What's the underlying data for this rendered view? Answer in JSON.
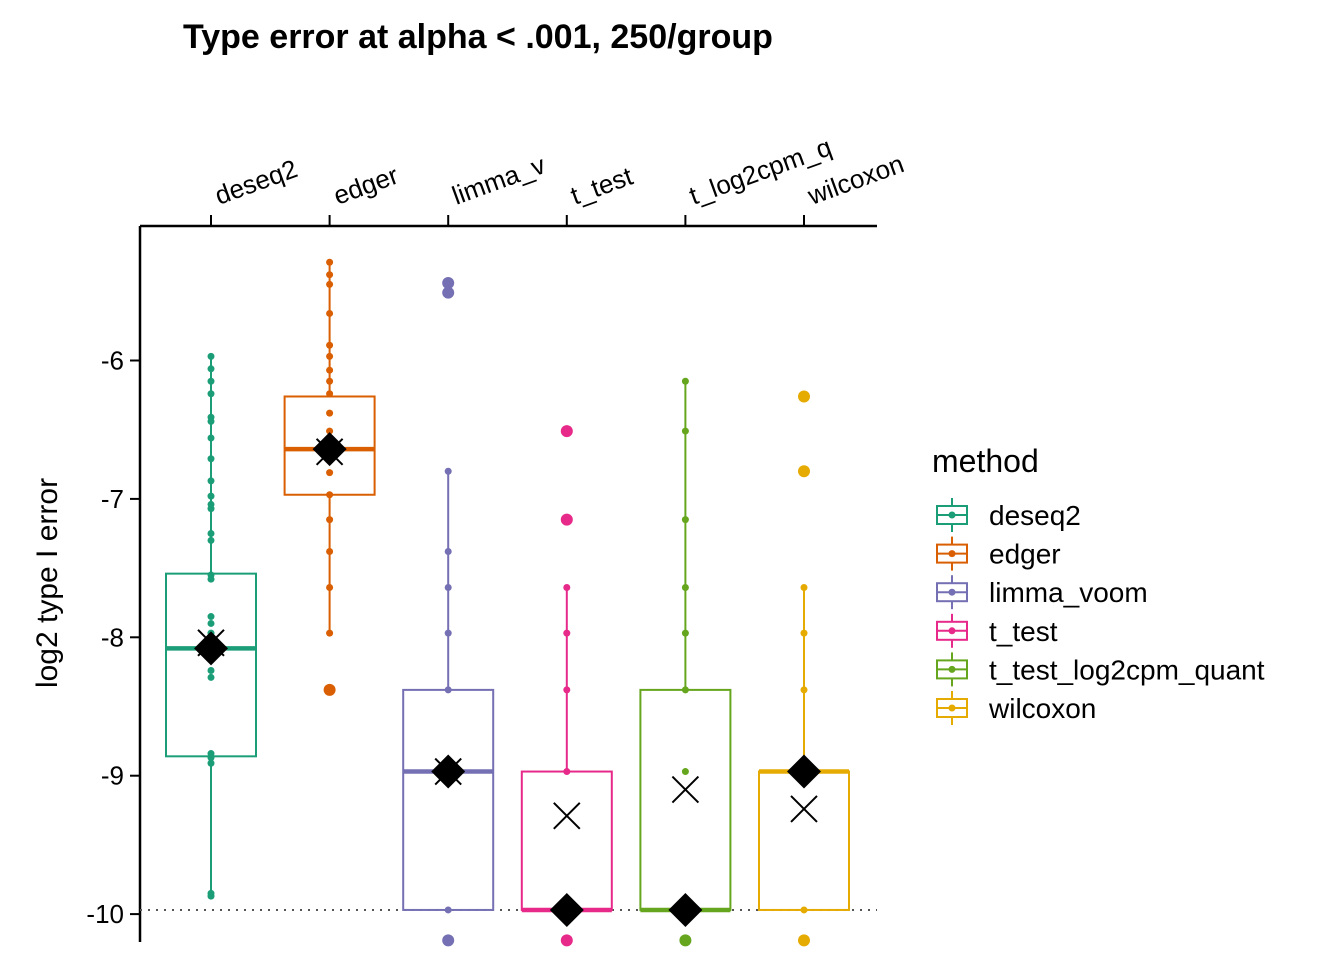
{
  "chart_data": {
    "type": "box",
    "title": "Type error at alpha < .001, 250/group",
    "xlabel": "",
    "ylabel": "log2 type I error",
    "x_axis_position": "top",
    "x_tick_rotation_deg": -20,
    "categories": [
      "deseq2",
      "edger",
      "limma_v",
      "t_test",
      "t_log2cpm_q",
      "wilcoxon"
    ],
    "y_ticks": [
      -6,
      -7,
      -8,
      -9,
      -10
    ],
    "ylim": [
      -10.2,
      -5.25
    ],
    "reference_line": {
      "y": -9.97,
      "style": "dotted",
      "color": "#555555"
    },
    "legend": {
      "title": "method",
      "position": "right",
      "items": [
        "deseq2",
        "edger",
        "limma_voom",
        "t_test",
        "t_test_log2cpm_quant",
        "wilcoxon"
      ]
    },
    "series": [
      {
        "name": "deseq2",
        "color": "#1B9E77",
        "box": {
          "q1": -8.86,
          "median": -8.08,
          "q3": -7.54,
          "whisker_low": -9.87,
          "whisker_high": -5.97
        },
        "mean": -8.08,
        "x_mark": -8.04,
        "outliers": [],
        "points": [
          -5.97,
          -6.06,
          -6.15,
          -6.24,
          -6.41,
          -6.44,
          -6.56,
          -6.71,
          -6.87,
          -6.98,
          -7.04,
          -7.07,
          -7.25,
          -7.3,
          -7.55,
          -7.58,
          -7.85,
          -7.9,
          -7.97,
          -8.02,
          -8.24,
          -8.29,
          -8.84,
          -8.87,
          -8.91,
          -9.85,
          -9.87
        ]
      },
      {
        "name": "edger",
        "color": "#D95F02",
        "box": {
          "q1": -6.97,
          "median": -6.64,
          "q3": -6.26,
          "whisker_low": -7.97,
          "whisker_high": -5.29
        },
        "mean": -6.64,
        "x_mark": -6.66,
        "outliers": [
          -8.38
        ],
        "points": [
          -5.29,
          -5.38,
          -5.45,
          -5.66,
          -5.89,
          -5.97,
          -6.07,
          -6.15,
          -6.24,
          -6.38,
          -6.51,
          -6.66,
          -6.81,
          -6.97,
          -7.15,
          -7.38,
          -7.64,
          -7.97
        ]
      },
      {
        "name": "limma_voom",
        "color": "#7570B3",
        "box": {
          "q1": -9.97,
          "median": -8.97,
          "q3": -8.38,
          "whisker_low": -9.97,
          "whisker_high": -6.8
        },
        "mean": -8.97,
        "x_mark": -8.97,
        "outliers": [
          -5.44,
          -5.51,
          -10.19
        ],
        "points": [
          -6.8,
          -7.38,
          -7.64,
          -7.97,
          -8.38,
          -8.97,
          -9.97
        ]
      },
      {
        "name": "t_test",
        "color": "#E7298A",
        "box": {
          "q1": -9.97,
          "median": -9.97,
          "q3": -8.97,
          "whisker_low": -9.97,
          "whisker_high": -7.64
        },
        "mean": -9.97,
        "x_mark": -9.29,
        "outliers": [
          -6.51,
          -7.15,
          -10.19
        ],
        "points": [
          -7.64,
          -7.97,
          -8.38,
          -8.97,
          -9.97
        ]
      },
      {
        "name": "t_test_log2cpm_quant",
        "color": "#66A61E",
        "box": {
          "q1": -9.97,
          "median": -9.97,
          "q3": -8.38,
          "whisker_low": -9.97,
          "whisker_high": -6.15
        },
        "mean": -9.97,
        "x_mark": -9.1,
        "outliers": [
          -10.19
        ],
        "points": [
          -6.15,
          -6.51,
          -7.15,
          -7.64,
          -7.97,
          -8.38,
          -8.97,
          -9.97
        ]
      },
      {
        "name": "wilcoxon",
        "color": "#E6AB02",
        "box": {
          "q1": -9.97,
          "median": -8.97,
          "q3": -8.97,
          "whisker_low": -9.97,
          "whisker_high": -7.64
        },
        "mean": -8.97,
        "x_mark": -9.24,
        "outliers": [
          -6.26,
          -6.8,
          -10.19
        ],
        "points": [
          -7.64,
          -7.97,
          -8.38,
          -8.97,
          -9.97
        ]
      }
    ]
  }
}
